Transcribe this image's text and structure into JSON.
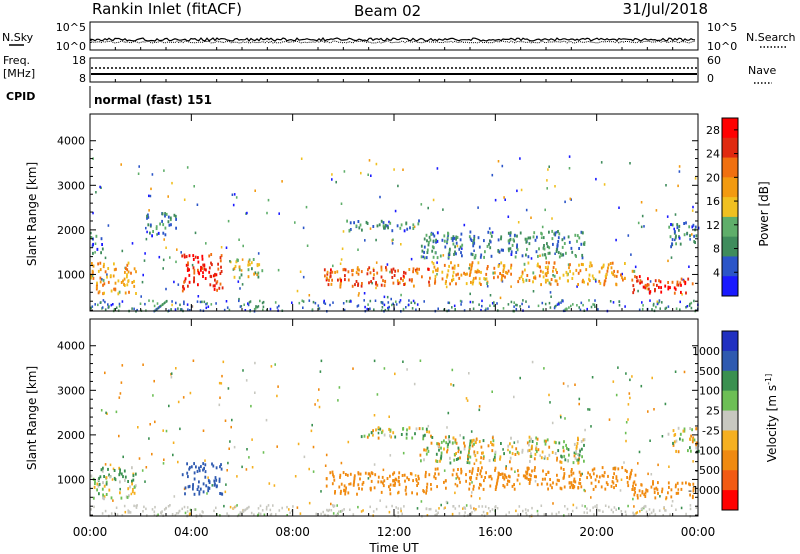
{
  "header": {
    "station": "Rankin Inlet (fitACF)",
    "beam": "Beam 02",
    "date": "31/Jul/2018"
  },
  "noise_panel": {
    "left_label": "N.Sky",
    "right_label": "N.Search",
    "left_ticks": [
      "10^5",
      "10^0"
    ],
    "right_ticks": [
      "10^5",
      "10^0"
    ]
  },
  "freq_panel": {
    "left_label_1": "Freq.",
    "left_label_2": "[MHz]",
    "left_ticks": [
      "18",
      "8"
    ],
    "right_label": "Nave",
    "right_ticks": [
      "60",
      "0"
    ]
  },
  "cpid": {
    "label": "CPID",
    "value": "normal (fast) 151"
  },
  "x_axis": {
    "label": "Time UT",
    "ticks": [
      "00:00",
      "04:00",
      "08:00",
      "12:00",
      "16:00",
      "20:00",
      "00:00"
    ]
  },
  "colors": {
    "power_scale": [
      "#1a1aff",
      "#2b55c8",
      "#3f8c5c",
      "#5fae6a",
      "#f0c020",
      "#f29a10",
      "#f07010",
      "#e02a10",
      "#ff0000"
    ],
    "velocity_scale": [
      "#ff0000",
      "#f25a12",
      "#f08a10",
      "#f5b020",
      "#c8c8c0",
      "#6dbf55",
      "#3a9050",
      "#2f5ab0",
      "#2030c0"
    ]
  },
  "chart_data": [
    {
      "type": "heatmap",
      "title": "",
      "xlabel": "Time UT",
      "ylabel": "Slant Range [km]",
      "xlim": [
        0,
        24
      ],
      "ylim": [
        180,
        4600
      ],
      "yticks": [
        "1000",
        "2000",
        "3000",
        "4000"
      ],
      "colorbar": {
        "label": "Power [dB]",
        "ticks": [
          "4",
          "8",
          "12",
          "16",
          "20",
          "24",
          "28"
        ],
        "range": [
          0,
          30
        ]
      },
      "regions": [
        {
          "t0": 0.0,
          "t1": 1.8,
          "r0": 600,
          "r1": 1300,
          "value": 18
        },
        {
          "t0": 0.0,
          "t1": 0.5,
          "r0": 1500,
          "r1": 1900,
          "value": 6
        },
        {
          "t0": 2.2,
          "t1": 3.4,
          "r0": 1900,
          "r1": 2400,
          "value": 8
        },
        {
          "t0": 3.6,
          "t1": 5.2,
          "r0": 600,
          "r1": 1500,
          "value": 26
        },
        {
          "t0": 5.6,
          "t1": 6.8,
          "r0": 950,
          "r1": 1400,
          "value": 14
        },
        {
          "t0": 9.2,
          "t1": 13.5,
          "r0": 750,
          "r1": 1200,
          "value": 22
        },
        {
          "t0": 10.0,
          "t1": 13.0,
          "r0": 2000,
          "r1": 2250,
          "value": 8
        },
        {
          "t0": 13.0,
          "t1": 19.5,
          "r0": 1400,
          "r1": 2000,
          "value": 8
        },
        {
          "t0": 13.5,
          "t1": 21.5,
          "r0": 800,
          "r1": 1300,
          "value": 18
        },
        {
          "t0": 21.4,
          "t1": 23.8,
          "r0": 600,
          "r1": 1000,
          "value": 26
        },
        {
          "t0": 22.8,
          "t1": 24.0,
          "r0": 1650,
          "r1": 2200,
          "value": 7
        }
      ]
    },
    {
      "type": "heatmap",
      "title": "",
      "xlabel": "Time UT",
      "ylabel": "Slant Range [km]",
      "xlim": [
        0,
        24
      ],
      "ylim": [
        180,
        4600
      ],
      "yticks": [
        "1000",
        "2000",
        "3000",
        "4000"
      ],
      "colorbar": {
        "label": "Velocity [m s^-1]",
        "ticks": [
          "1000",
          "500",
          "100",
          "25",
          "-25",
          "-100",
          "-500",
          "-1000"
        ]
      },
      "regions": [
        {
          "t0": 0.0,
          "t1": 1.8,
          "r0": 600,
          "r1": 1300,
          "value": 80
        },
        {
          "t0": 3.6,
          "t1": 5.2,
          "r0": 700,
          "r1": 1400,
          "value": 700
        },
        {
          "t0": 9.2,
          "t1": 13.5,
          "r0": 700,
          "r1": 1200,
          "value": -300
        },
        {
          "t0": 10.5,
          "t1": 13.5,
          "r0": 1950,
          "r1": 2200,
          "value": 0
        },
        {
          "t0": 13.0,
          "t1": 19.5,
          "r0": 1400,
          "r1": 2000,
          "value": 0
        },
        {
          "t0": 13.5,
          "t1": 21.5,
          "r0": 800,
          "r1": 1300,
          "value": -300
        },
        {
          "t0": 21.4,
          "t1": 23.8,
          "r0": 600,
          "r1": 1000,
          "value": -300
        },
        {
          "t0": 22.8,
          "t1": 24.0,
          "r0": 1650,
          "r1": 2200,
          "value": 0
        }
      ]
    }
  ]
}
